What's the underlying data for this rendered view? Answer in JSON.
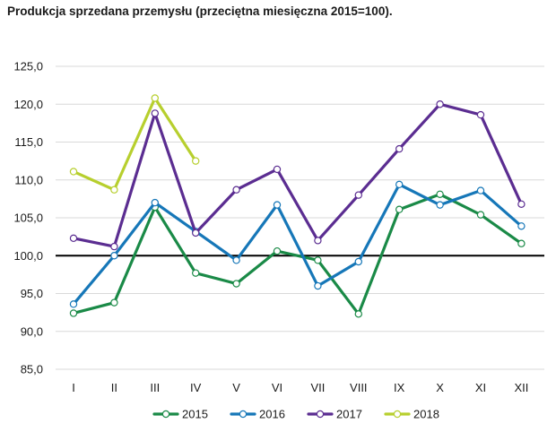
{
  "title": "Produkcja sprzedana przemysłu (przeciętna miesięczna 2015=100).",
  "chart_data": {
    "type": "line",
    "title": "Produkcja sprzedana przemysłu (przeciętna miesięczna 2015=100).",
    "xlabel": "",
    "ylabel": "",
    "categories": [
      "I",
      "II",
      "III",
      "IV",
      "V",
      "VI",
      "VII",
      "VIII",
      "IX",
      "X",
      "XI",
      "XII"
    ],
    "ylim": [
      85,
      125
    ],
    "yticks": [
      85,
      90,
      95,
      100,
      105,
      110,
      115,
      120,
      125
    ],
    "ytick_labels": [
      "85,0",
      "90,0",
      "95,0",
      "100,0",
      "105,0",
      "110,0",
      "115,0",
      "120,0",
      "125,0"
    ],
    "reference_line": 100,
    "grid": true,
    "legend_position": "bottom",
    "series": [
      {
        "name": "2015",
        "color": "#1a8a47",
        "values": [
          92.4,
          93.8,
          106.4,
          97.7,
          96.3,
          100.6,
          99.4,
          92.3,
          106.1,
          108.1,
          105.4,
          101.6
        ]
      },
      {
        "name": "2016",
        "color": "#1677b8",
        "values": [
          93.6,
          100.0,
          107.0,
          103.2,
          99.4,
          106.7,
          96.0,
          99.2,
          109.4,
          106.7,
          108.6,
          103.9
        ]
      },
      {
        "name": "2017",
        "color": "#5b2d91",
        "values": [
          102.3,
          101.2,
          118.8,
          103.0,
          108.7,
          111.4,
          102.0,
          108.0,
          114.1,
          120.0,
          118.6,
          106.8
        ]
      },
      {
        "name": "2018",
        "color": "#b7cf2e",
        "values": [
          111.1,
          108.7,
          120.8,
          112.5,
          null,
          null,
          null,
          null,
          null,
          null,
          null,
          null
        ]
      }
    ]
  }
}
